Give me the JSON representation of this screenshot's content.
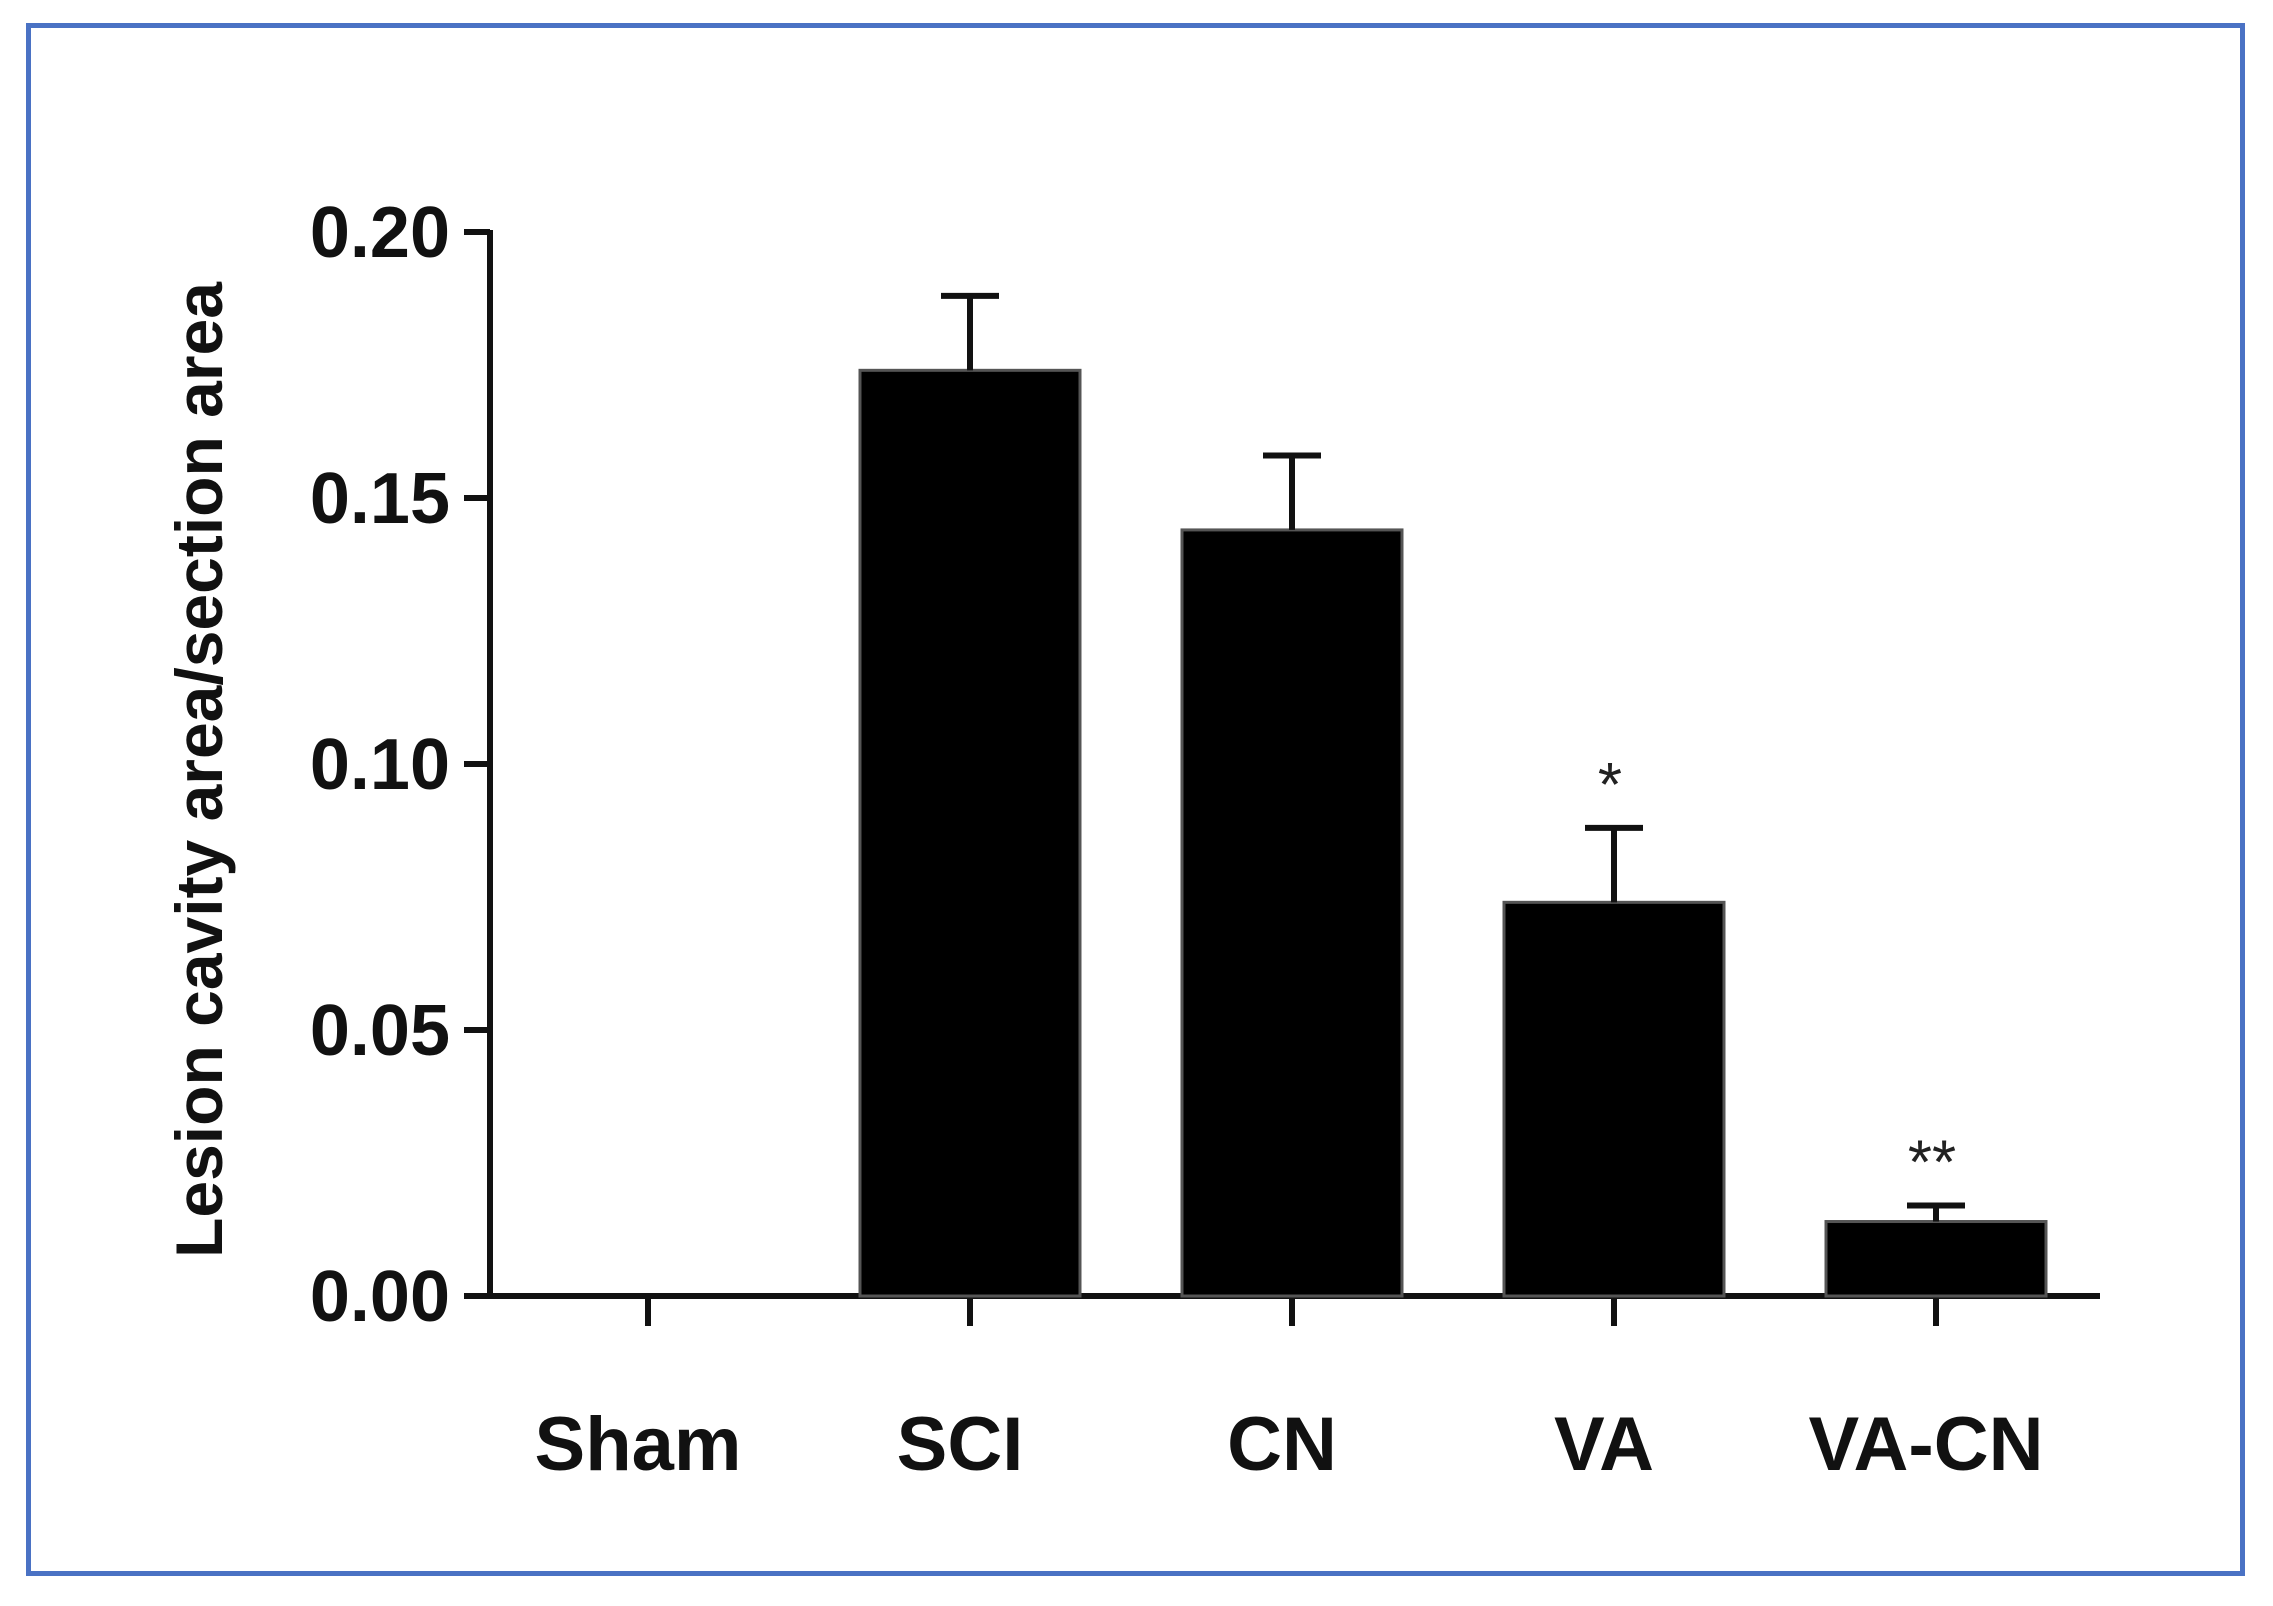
{
  "colors": {
    "frame": "#4a72c4",
    "bar": "#000000",
    "axis": "#111111"
  },
  "chart_data": {
    "type": "bar",
    "title": "",
    "xlabel": "",
    "ylabel": "Lesion cavity area/section area",
    "ylim": [
      0,
      0.2
    ],
    "yticks": [
      "0.00",
      "0.05",
      "0.10",
      "0.15",
      "0.20"
    ],
    "categories": [
      "Sham",
      "SCI",
      "CN",
      "VA",
      "VA-CN"
    ],
    "values": [
      0,
      0.174,
      0.144,
      0.074,
      0.014
    ],
    "error": [
      0,
      0.014,
      0.014,
      0.014,
      0.003
    ],
    "significance": [
      "",
      "",
      "",
      "*",
      "**"
    ],
    "grid": false,
    "legend": "none"
  }
}
